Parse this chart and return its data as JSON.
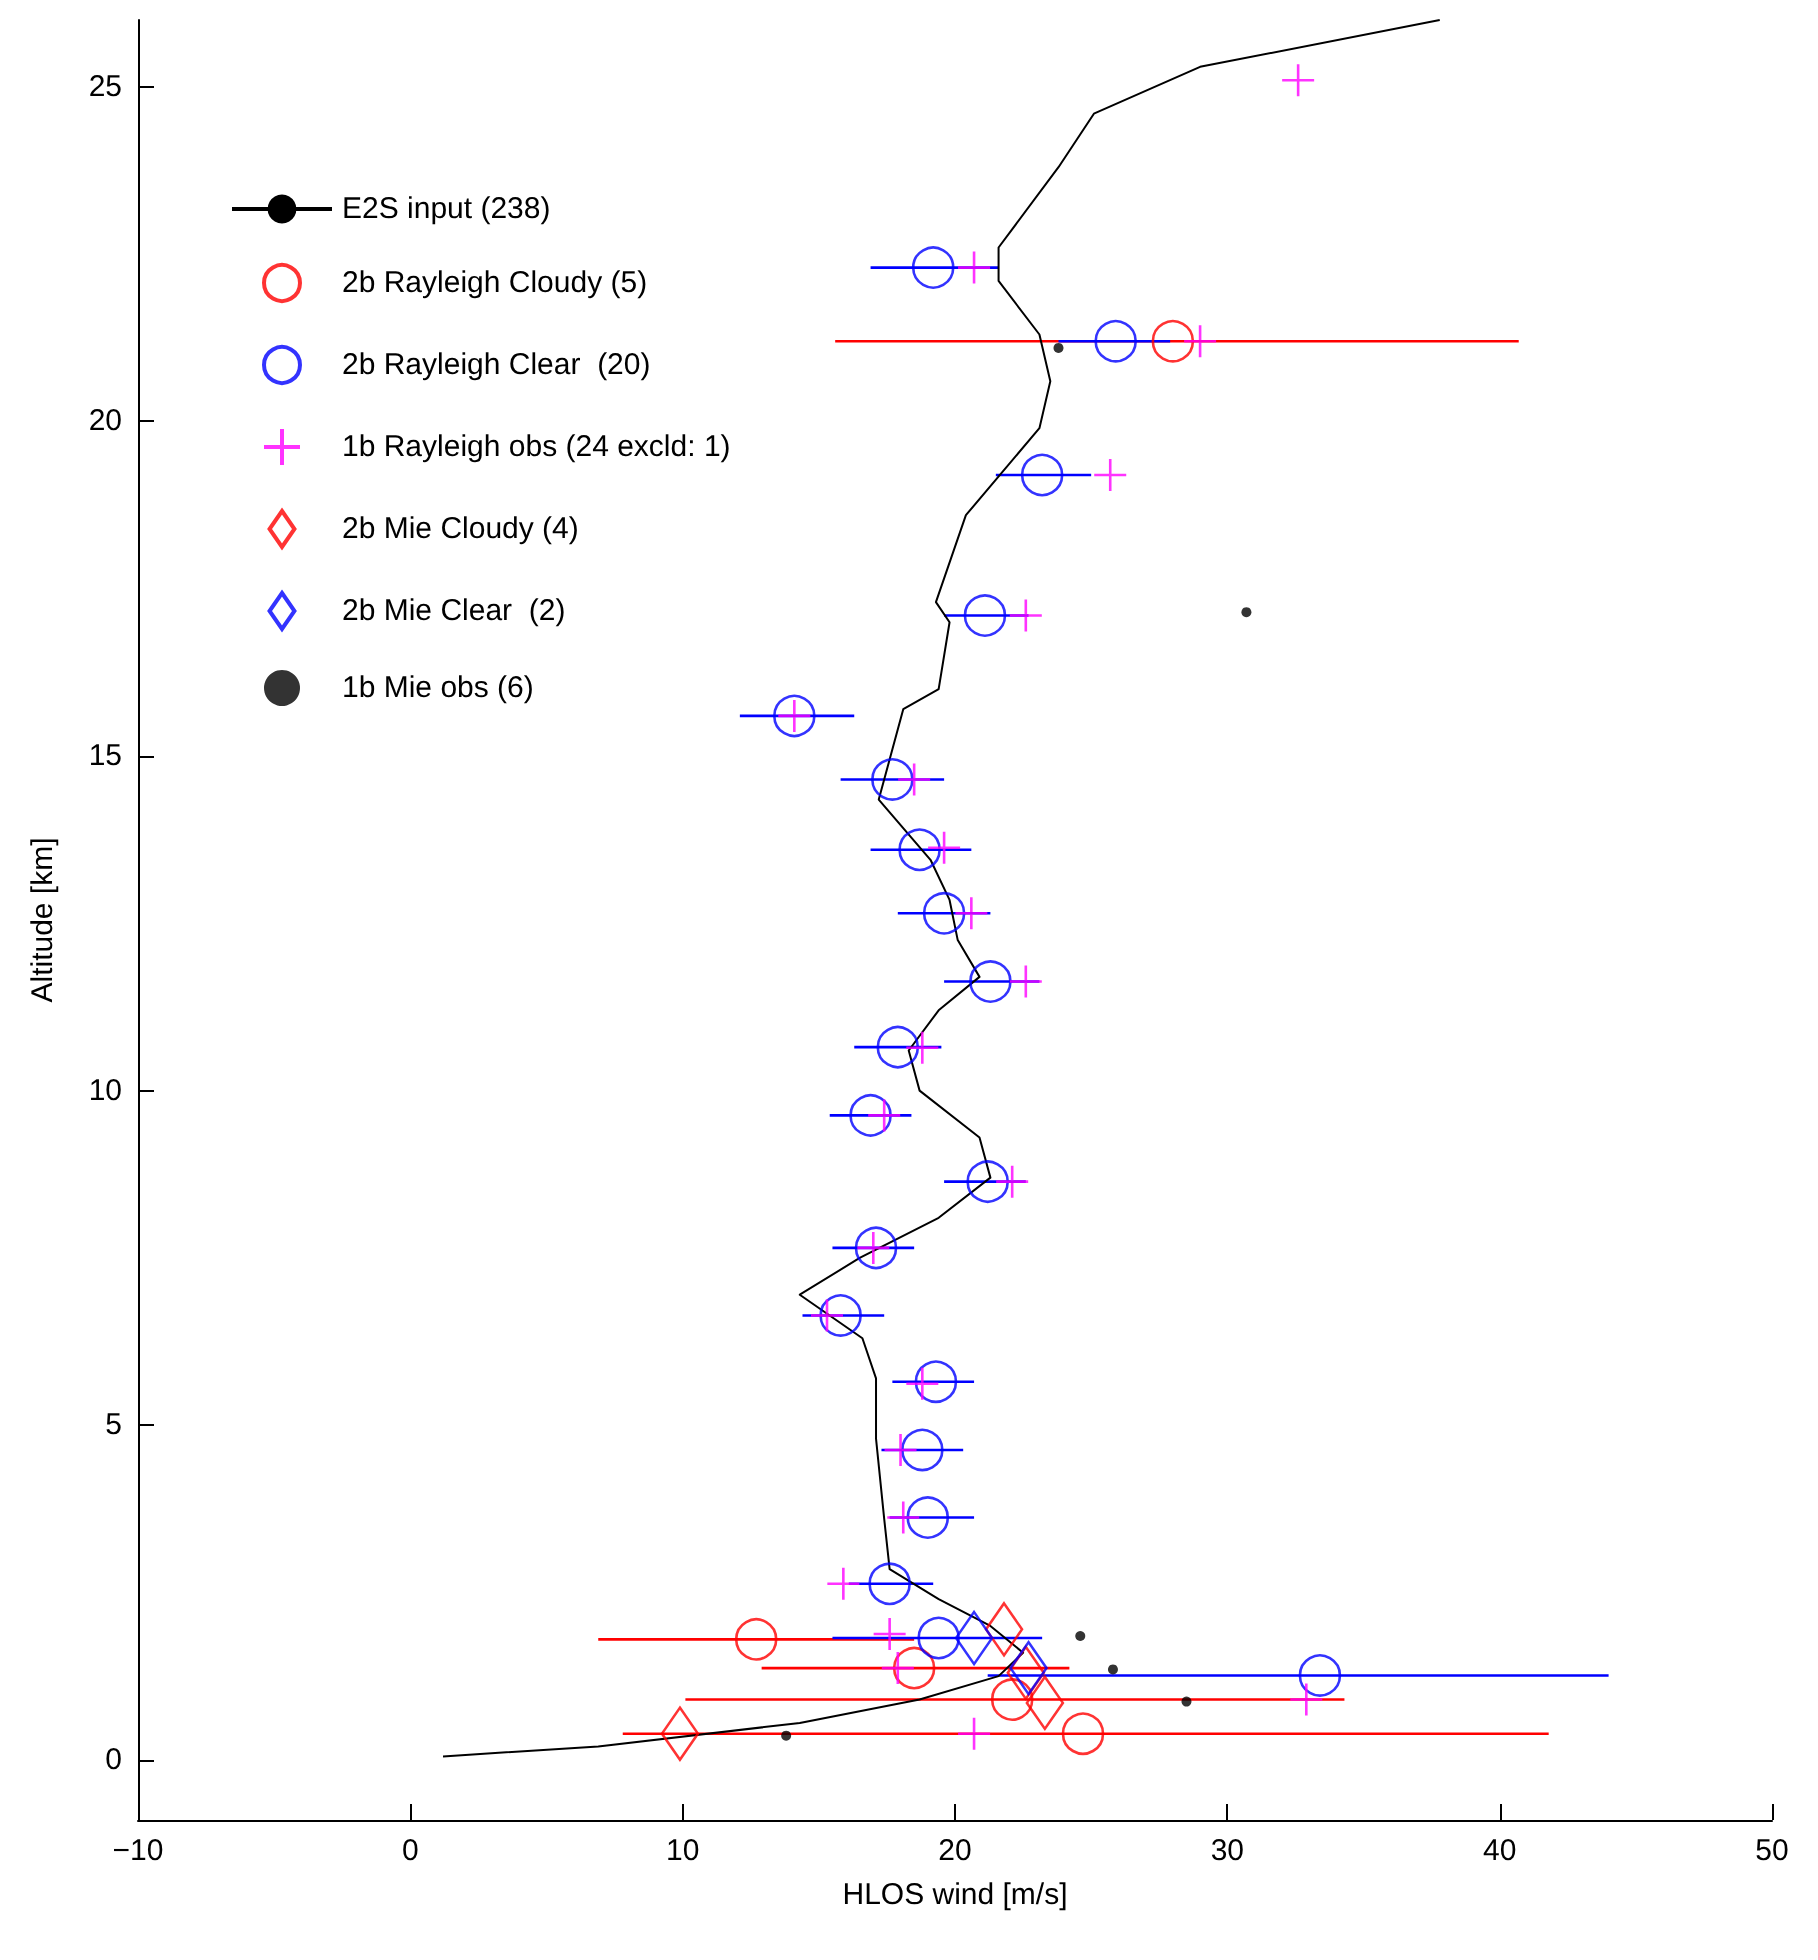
{
  "chart_data": {
    "type": "scatter",
    "xlabel": "HLOS wind [m/s]",
    "ylabel": "Altitude [km]",
    "xlim": [
      -10,
      50
    ],
    "xticks": [
      -10,
      0,
      10,
      20,
      30,
      40,
      50
    ],
    "ylim": [
      -0.9,
      26
    ],
    "yticks": [
      0,
      5,
      10,
      15,
      20,
      25
    ],
    "grid": false,
    "legend": "top left",
    "series": [
      {
        "name": "E2S input (238)",
        "type": "line",
        "color": "#000000",
        "marker": "none",
        "line_style": "solid",
        "x": [
          1.2,
          6.9,
          14.3,
          18.7,
          21.6,
          22.5,
          21.3,
          19.4,
          17.6,
          17.4,
          17.1,
          17.1,
          16.6,
          14.3,
          16.5,
          19.4,
          21.3,
          20.9,
          18.7,
          18.3,
          19.4,
          20.9,
          20.1,
          19.8,
          19.1,
          17.2,
          18.1,
          19.4,
          19.8,
          19.3,
          20.4,
          23.1,
          23.5,
          23.1,
          21.6,
          21.6,
          23.8,
          25.1,
          29.0,
          37.8
        ],
        "values": [
          0.05,
          0.2,
          0.55,
          0.9,
          1.25,
          1.6,
          2.0,
          2.4,
          2.85,
          3.6,
          4.8,
          5.7,
          6.3,
          6.95,
          7.5,
          8.1,
          8.7,
          9.3,
          10.0,
          10.6,
          11.2,
          11.7,
          12.25,
          12.85,
          13.45,
          14.35,
          15.7,
          16.0,
          17.0,
          17.3,
          18.6,
          19.9,
          20.6,
          21.3,
          22.1,
          22.6,
          23.8,
          24.6,
          25.3,
          26.0
        ]
      },
      {
        "name": "2b Rayleigh Cloudy (5)",
        "color": "#ff0000",
        "marker": "circle",
        "x": [
          28.0,
          12.7,
          18.5,
          22.1,
          24.7
        ],
        "values": [
          21.2,
          1.8,
          1.37,
          0.9,
          0.39
        ],
        "xerrors": [
          [
            15.6,
            40.7
          ],
          [
            6.9,
            18.5
          ],
          [
            12.9,
            24.2
          ],
          [
            10.1,
            34.3
          ],
          [
            7.8,
            41.8
          ]
        ]
      },
      {
        "name": "2b Rayleigh Clear  (20)",
        "color": "#0000ff",
        "marker": "circle",
        "x": [
          19.2,
          25.9,
          23.2,
          21.1,
          14.1,
          17.7,
          18.7,
          19.6,
          21.3,
          17.9,
          16.9,
          21.2,
          17.1,
          15.8,
          19.3,
          18.8,
          19.0,
          17.6,
          19.4,
          33.4
        ],
        "values": [
          22.3,
          21.2,
          19.2,
          17.1,
          15.6,
          14.65,
          13.6,
          12.65,
          11.63,
          10.65,
          9.63,
          8.64,
          7.65,
          6.64,
          5.65,
          4.63,
          3.62,
          2.63,
          1.82,
          1.26
        ],
        "xerrors": [
          [
            16.9,
            21.6
          ],
          [
            23.8,
            27.9
          ],
          [
            21.5,
            25.0
          ],
          [
            19.6,
            22.7
          ],
          [
            12.1,
            16.3
          ],
          [
            15.8,
            19.6
          ],
          [
            16.9,
            20.6
          ],
          [
            17.9,
            21.3
          ],
          [
            19.6,
            23.1
          ],
          [
            16.3,
            19.5
          ],
          [
            15.4,
            18.4
          ],
          [
            19.6,
            22.6
          ],
          [
            15.5,
            18.5
          ],
          [
            14.4,
            17.4
          ],
          [
            17.7,
            20.7
          ],
          [
            17.3,
            20.3
          ],
          [
            17.6,
            20.7
          ],
          [
            16.1,
            19.2
          ],
          [
            15.5,
            23.2
          ],
          [
            21.2,
            44.0
          ]
        ]
      },
      {
        "name": "1b Rayleigh obs (24 excld: 1)",
        "color": "#ff00ff",
        "marker": "cross",
        "x": [
          32.6,
          20.7,
          29.0,
          25.7,
          22.6,
          14.1,
          18.5,
          19.6,
          20.6,
          22.6,
          18.8,
          17.4,
          22.1,
          17.0,
          15.3,
          18.8,
          18.0,
          18.1,
          15.9,
          17.6,
          17.9,
          32.9,
          20.7
        ],
        "values": [
          25.1,
          22.3,
          21.2,
          19.2,
          17.1,
          15.6,
          14.65,
          13.63,
          12.65,
          11.63,
          10.64,
          9.63,
          8.64,
          7.65,
          6.64,
          5.62,
          4.63,
          3.62,
          2.63,
          1.88,
          1.37,
          0.9,
          0.39
        ]
      },
      {
        "name": "2b Mie Cloudy (4)",
        "color": "#ff0000",
        "marker": "diamond",
        "x": [
          21.8,
          22.6,
          23.3,
          9.9
        ],
        "values": [
          1.95,
          1.3,
          0.85,
          0.39
        ]
      },
      {
        "name": "2b Mie Clear  (2)",
        "color": "#0000ff",
        "marker": "diamond",
        "x": [
          20.7,
          22.7
        ],
        "values": [
          1.82,
          1.37
        ]
      },
      {
        "name": "1b Mie obs (6)",
        "color": "#000000",
        "marker": "dot",
        "x": [
          23.8,
          30.7,
          24.6,
          25.8,
          28.5,
          13.8
        ],
        "values": [
          21.1,
          17.15,
          1.85,
          1.35,
          0.87,
          0.36
        ]
      }
    ]
  }
}
